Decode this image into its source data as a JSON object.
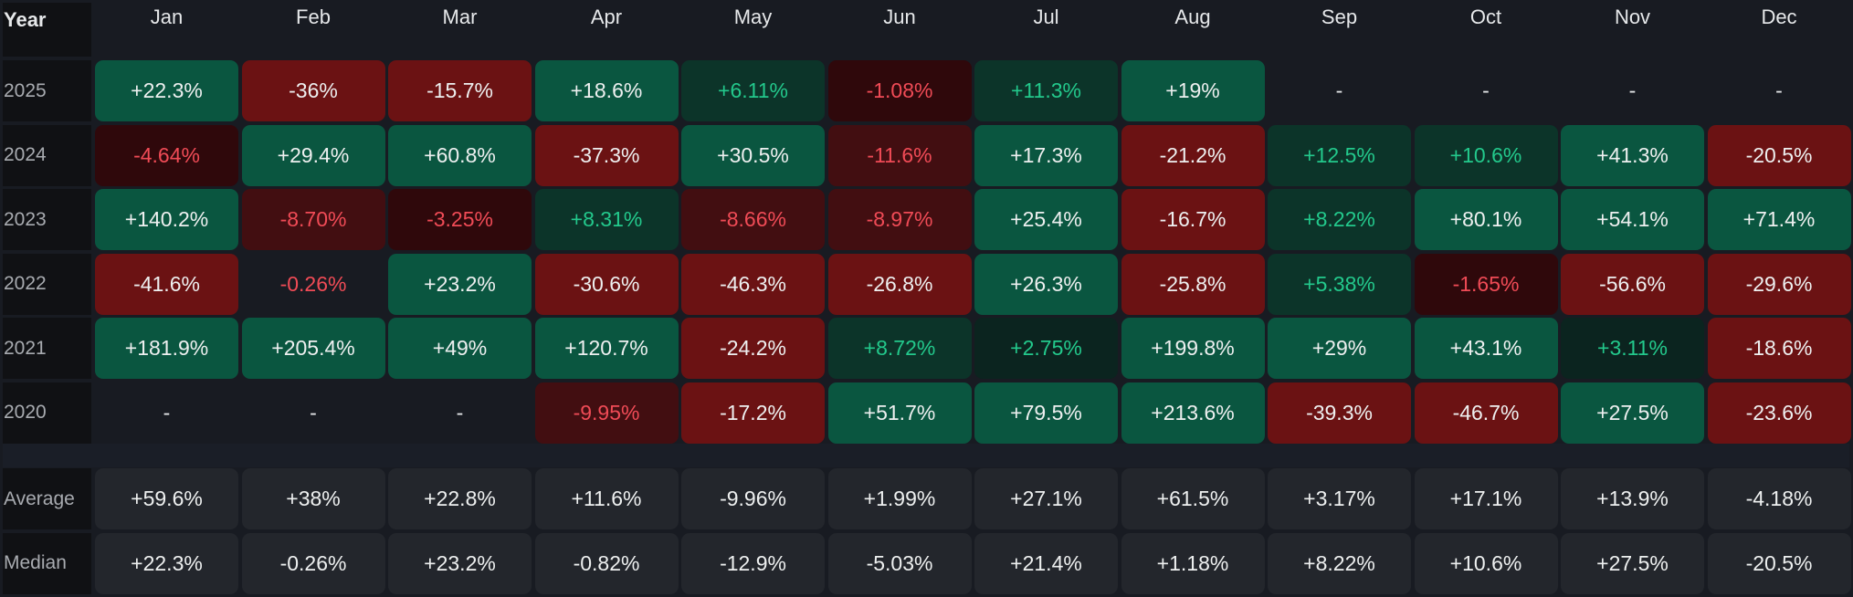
{
  "table": {
    "year_header": "Year",
    "months": [
      "Jan",
      "Feb",
      "Mar",
      "Apr",
      "May",
      "Jun",
      "Jul",
      "Aug",
      "Sep",
      "Oct",
      "Nov",
      "Dec"
    ],
    "rows": [
      {
        "year": "2025",
        "values": [
          "+22.3%",
          "-36%",
          "-15.7%",
          "+18.6%",
          "+6.11%",
          "-1.08%",
          "+11.3%",
          "+19%",
          "-",
          "-",
          "-",
          "-"
        ],
        "tones": [
          "sg",
          "sr",
          "sr",
          "sg",
          "dg",
          "vr",
          "dg",
          "sg",
          "empty",
          "empty",
          "empty",
          "empty"
        ]
      },
      {
        "year": "2024",
        "values": [
          "-4.64%",
          "+29.4%",
          "+60.8%",
          "-37.3%",
          "+30.5%",
          "-11.6%",
          "+17.3%",
          "-21.2%",
          "+12.5%",
          "+10.6%",
          "+41.3%",
          "-20.5%"
        ],
        "tones": [
          "vr",
          "sg",
          "sg",
          "sr",
          "sg",
          "dr",
          "sg",
          "sr",
          "dg",
          "dg",
          "sg",
          "sr"
        ]
      },
      {
        "year": "2023",
        "values": [
          "+140.2%",
          "-8.70%",
          "-3.25%",
          "+8.31%",
          "-8.66%",
          "-8.97%",
          "+25.4%",
          "-16.7%",
          "+8.22%",
          "+80.1%",
          "+54.1%",
          "+71.4%"
        ],
        "tones": [
          "sg",
          "dr",
          "vr",
          "dg",
          "dr",
          "dr",
          "sg",
          "sr",
          "dg",
          "sg",
          "sg",
          "sg"
        ]
      },
      {
        "year": "2022",
        "values": [
          "-41.6%",
          "-0.26%",
          "+23.2%",
          "-30.6%",
          "-46.3%",
          "-26.8%",
          "+26.3%",
          "-25.8%",
          "+5.38%",
          "-1.65%",
          "-56.6%",
          "-29.6%"
        ],
        "tones": [
          "sr",
          "nr",
          "sg",
          "sr",
          "sr",
          "sr",
          "sg",
          "sr",
          "dg",
          "vr",
          "sr",
          "sr"
        ]
      },
      {
        "year": "2021",
        "values": [
          "+181.9%",
          "+205.4%",
          "+49%",
          "+120.7%",
          "-24.2%",
          "+8.72%",
          "+2.75%",
          "+199.8%",
          "+29%",
          "+43.1%",
          "+3.11%",
          "-18.6%"
        ],
        "tones": [
          "sg",
          "sg",
          "sg",
          "sg",
          "sr",
          "dg",
          "vg",
          "sg",
          "sg",
          "sg",
          "vg",
          "sr"
        ]
      },
      {
        "year": "2020",
        "values": [
          "-",
          "-",
          "-",
          "-9.95%",
          "-17.2%",
          "+51.7%",
          "+79.5%",
          "+213.6%",
          "-39.3%",
          "-46.7%",
          "+27.5%",
          "-23.6%"
        ],
        "tones": [
          "empty",
          "empty",
          "empty",
          "dr",
          "sr",
          "sg",
          "sg",
          "sg",
          "sr",
          "sr",
          "sg",
          "sr"
        ]
      }
    ],
    "stats": [
      {
        "label": "Average",
        "values": [
          "+59.6%",
          "+38%",
          "+22.8%",
          "+11.6%",
          "-9.96%",
          "+1.99%",
          "+27.1%",
          "+61.5%",
          "+3.17%",
          "+17.1%",
          "+13.9%",
          "-4.18%"
        ]
      },
      {
        "label": "Median",
        "values": [
          "+22.3%",
          "-0.26%",
          "+23.2%",
          "-0.82%",
          "-12.9%",
          "-5.03%",
          "+21.4%",
          "+1.18%",
          "+8.22%",
          "+10.6%",
          "+27.5%",
          "-20.5%"
        ]
      }
    ]
  },
  "colors": {
    "background": "#181b22",
    "strong_green": "#0a5640",
    "dim_green": "#0c3429",
    "strong_red": "#6b1213",
    "dim_red": "#420e11",
    "positive_text": "#23c98c",
    "negative_text": "#f04b56"
  }
}
